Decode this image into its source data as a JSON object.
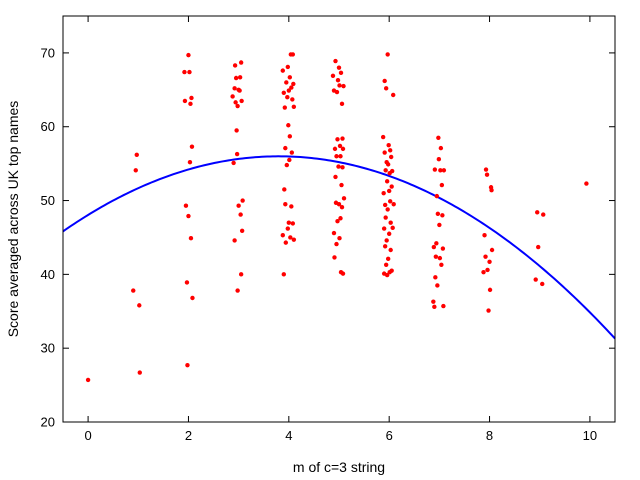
{
  "chart_data": {
    "type": "scatter",
    "title": "",
    "xlabel": "m of c=3 string",
    "ylabel": "Score averaged across UK top names",
    "xlim": [
      -0.5,
      10.5
    ],
    "ylim": [
      20,
      75
    ],
    "xticks": [
      0,
      2,
      4,
      6,
      8,
      10
    ],
    "yticks": [
      20,
      30,
      40,
      50,
      60,
      70
    ],
    "grid": false,
    "legend": "none",
    "colors": {
      "points": "#ff0000",
      "fit": "#0000ff",
      "axes": "#000000"
    },
    "series": [
      {
        "kind": "points",
        "points": [
          [
            0.0,
            25.7
          ],
          [
            0.9,
            37.8
          ],
          [
            0.95,
            54.1
          ],
          [
            0.97,
            56.2
          ],
          [
            1.02,
            35.8
          ],
          [
            1.03,
            26.7
          ],
          [
            1.92,
            67.4
          ],
          [
            1.93,
            63.5
          ],
          [
            1.95,
            49.3
          ],
          [
            1.97,
            38.9
          ],
          [
            1.98,
            27.7
          ],
          [
            2.0,
            69.7
          ],
          [
            2.0,
            47.9
          ],
          [
            2.02,
            67.4
          ],
          [
            2.03,
            55.2
          ],
          [
            2.04,
            63.1
          ],
          [
            2.05,
            44.9
          ],
          [
            2.06,
            63.9
          ],
          [
            2.07,
            57.3
          ],
          [
            2.08,
            36.8
          ],
          [
            2.88,
            64.1
          ],
          [
            2.9,
            55.1
          ],
          [
            2.92,
            65.2
          ],
          [
            2.92,
            44.6
          ],
          [
            2.93,
            68.3
          ],
          [
            2.94,
            63.3
          ],
          [
            2.95,
            66.6
          ],
          [
            2.96,
            59.5
          ],
          [
            2.97,
            56.3
          ],
          [
            2.98,
            62.8
          ],
          [
            2.98,
            37.8
          ],
          [
            3.0,
            65.0
          ],
          [
            3.0,
            49.3
          ],
          [
            3.02,
            64.9
          ],
          [
            3.03,
            66.7
          ],
          [
            3.04,
            48.1
          ],
          [
            3.05,
            68.7
          ],
          [
            3.05,
            40.0
          ],
          [
            3.06,
            63.5
          ],
          [
            3.07,
            45.9
          ],
          [
            3.08,
            50.0
          ],
          [
            3.88,
            67.6
          ],
          [
            3.88,
            45.3
          ],
          [
            3.9,
            64.6
          ],
          [
            3.9,
            40.0
          ],
          [
            3.91,
            51.5
          ],
          [
            3.92,
            62.6
          ],
          [
            3.93,
            49.5
          ],
          [
            3.93,
            57.1
          ],
          [
            3.94,
            44.3
          ],
          [
            3.95,
            66.0
          ],
          [
            3.96,
            54.8
          ],
          [
            3.97,
            64.0
          ],
          [
            3.98,
            68.1
          ],
          [
            3.98,
            46.2
          ],
          [
            3.99,
            60.2
          ],
          [
            4.0,
            64.9
          ],
          [
            4.0,
            47.0
          ],
          [
            4.01,
            55.5
          ],
          [
            4.02,
            58.7
          ],
          [
            4.02,
            66.7
          ],
          [
            4.03,
            45.0
          ],
          [
            4.04,
            69.8
          ],
          [
            4.05,
            65.3
          ],
          [
            4.05,
            49.2
          ],
          [
            4.06,
            56.5
          ],
          [
            4.07,
            63.7
          ],
          [
            4.08,
            69.8
          ],
          [
            4.08,
            46.9
          ],
          [
            4.09,
            65.8
          ],
          [
            4.1,
            62.7
          ],
          [
            4.1,
            44.7
          ],
          [
            4.88,
            66.9
          ],
          [
            4.9,
            64.9
          ],
          [
            4.9,
            45.6
          ],
          [
            4.91,
            42.3
          ],
          [
            4.92,
            57.0
          ],
          [
            4.93,
            53.2
          ],
          [
            4.93,
            68.9
          ],
          [
            4.94,
            49.7
          ],
          [
            4.95,
            56.0
          ],
          [
            4.95,
            44.1
          ],
          [
            4.96,
            64.7
          ],
          [
            4.97,
            58.3
          ],
          [
            4.97,
            47.2
          ],
          [
            4.98,
            66.3
          ],
          [
            4.99,
            54.6
          ],
          [
            5.0,
            68.0
          ],
          [
            5.0,
            49.5
          ],
          [
            5.01,
            65.6
          ],
          [
            5.01,
            44.9
          ],
          [
            5.02,
            57.4
          ],
          [
            5.03,
            56.0
          ],
          [
            5.03,
            47.6
          ],
          [
            5.04,
            67.3
          ],
          [
            5.04,
            40.3
          ],
          [
            5.05,
            52.1
          ],
          [
            5.06,
            63.1
          ],
          [
            5.06,
            49.1
          ],
          [
            5.07,
            54.5
          ],
          [
            5.07,
            58.4
          ],
          [
            5.08,
            40.1
          ],
          [
            5.08,
            57.0
          ],
          [
            5.09,
            65.5
          ],
          [
            5.1,
            50.3
          ],
          [
            5.88,
            58.6
          ],
          [
            5.89,
            51.0
          ],
          [
            5.9,
            46.2
          ],
          [
            5.9,
            40.1
          ],
          [
            5.91,
            66.2
          ],
          [
            5.91,
            56.5
          ],
          [
            5.92,
            49.4
          ],
          [
            5.92,
            43.8
          ],
          [
            5.93,
            54.1
          ],
          [
            5.93,
            47.7
          ],
          [
            5.94,
            65.2
          ],
          [
            5.94,
            41.3
          ],
          [
            5.95,
            55.2
          ],
          [
            5.95,
            44.6
          ],
          [
            5.96,
            52.6
          ],
          [
            5.96,
            39.9
          ],
          [
            5.97,
            69.8
          ],
          [
            5.97,
            48.8
          ],
          [
            5.98,
            54.9
          ],
          [
            5.98,
            42.1
          ],
          [
            5.99,
            57.5
          ],
          [
            6.0,
            51.3
          ],
          [
            6.0,
            45.5
          ],
          [
            6.01,
            53.7
          ],
          [
            6.01,
            40.3
          ],
          [
            6.02,
            56.8
          ],
          [
            6.02,
            49.9
          ],
          [
            6.03,
            47.0
          ],
          [
            6.03,
            43.3
          ],
          [
            6.04,
            55.9
          ],
          [
            6.05,
            51.9
          ],
          [
            6.05,
            40.5
          ],
          [
            6.06,
            54.0
          ],
          [
            6.07,
            46.3
          ],
          [
            6.08,
            64.3
          ],
          [
            6.09,
            49.5
          ],
          [
            6.88,
            36.3
          ],
          [
            6.89,
            43.7
          ],
          [
            6.9,
            35.6
          ],
          [
            6.91,
            54.2
          ],
          [
            6.92,
            39.6
          ],
          [
            6.93,
            42.4
          ],
          [
            6.94,
            44.2
          ],
          [
            6.95,
            50.6
          ],
          [
            6.96,
            38.5
          ],
          [
            6.97,
            48.2
          ],
          [
            6.98,
            58.5
          ],
          [
            6.99,
            55.6
          ],
          [
            7.0,
            46.7
          ],
          [
            7.01,
            42.2
          ],
          [
            7.02,
            54.1
          ],
          [
            7.03,
            57.1
          ],
          [
            7.04,
            41.3
          ],
          [
            7.05,
            52.1
          ],
          [
            7.06,
            48.0
          ],
          [
            7.07,
            43.5
          ],
          [
            7.08,
            35.7
          ],
          [
            7.09,
            54.1
          ],
          [
            7.88,
            40.3
          ],
          [
            7.9,
            45.3
          ],
          [
            7.92,
            42.4
          ],
          [
            7.93,
            54.2
          ],
          [
            7.95,
            53.5
          ],
          [
            7.96,
            40.6
          ],
          [
            7.98,
            35.1
          ],
          [
            8.0,
            41.7
          ],
          [
            8.01,
            37.9
          ],
          [
            8.03,
            51.8
          ],
          [
            8.04,
            51.4
          ],
          [
            8.05,
            43.3
          ],
          [
            8.92,
            39.3
          ],
          [
            8.95,
            48.4
          ],
          [
            8.97,
            43.7
          ],
          [
            9.05,
            38.7
          ],
          [
            9.07,
            48.1
          ],
          [
            9.93,
            52.3
          ]
        ]
      },
      {
        "kind": "fit",
        "model": "quadratic",
        "coefficients": {
          "a": -0.55,
          "b": 4.18,
          "c": 48.05
        },
        "x_range": [
          -0.5,
          10.5
        ]
      }
    ]
  }
}
